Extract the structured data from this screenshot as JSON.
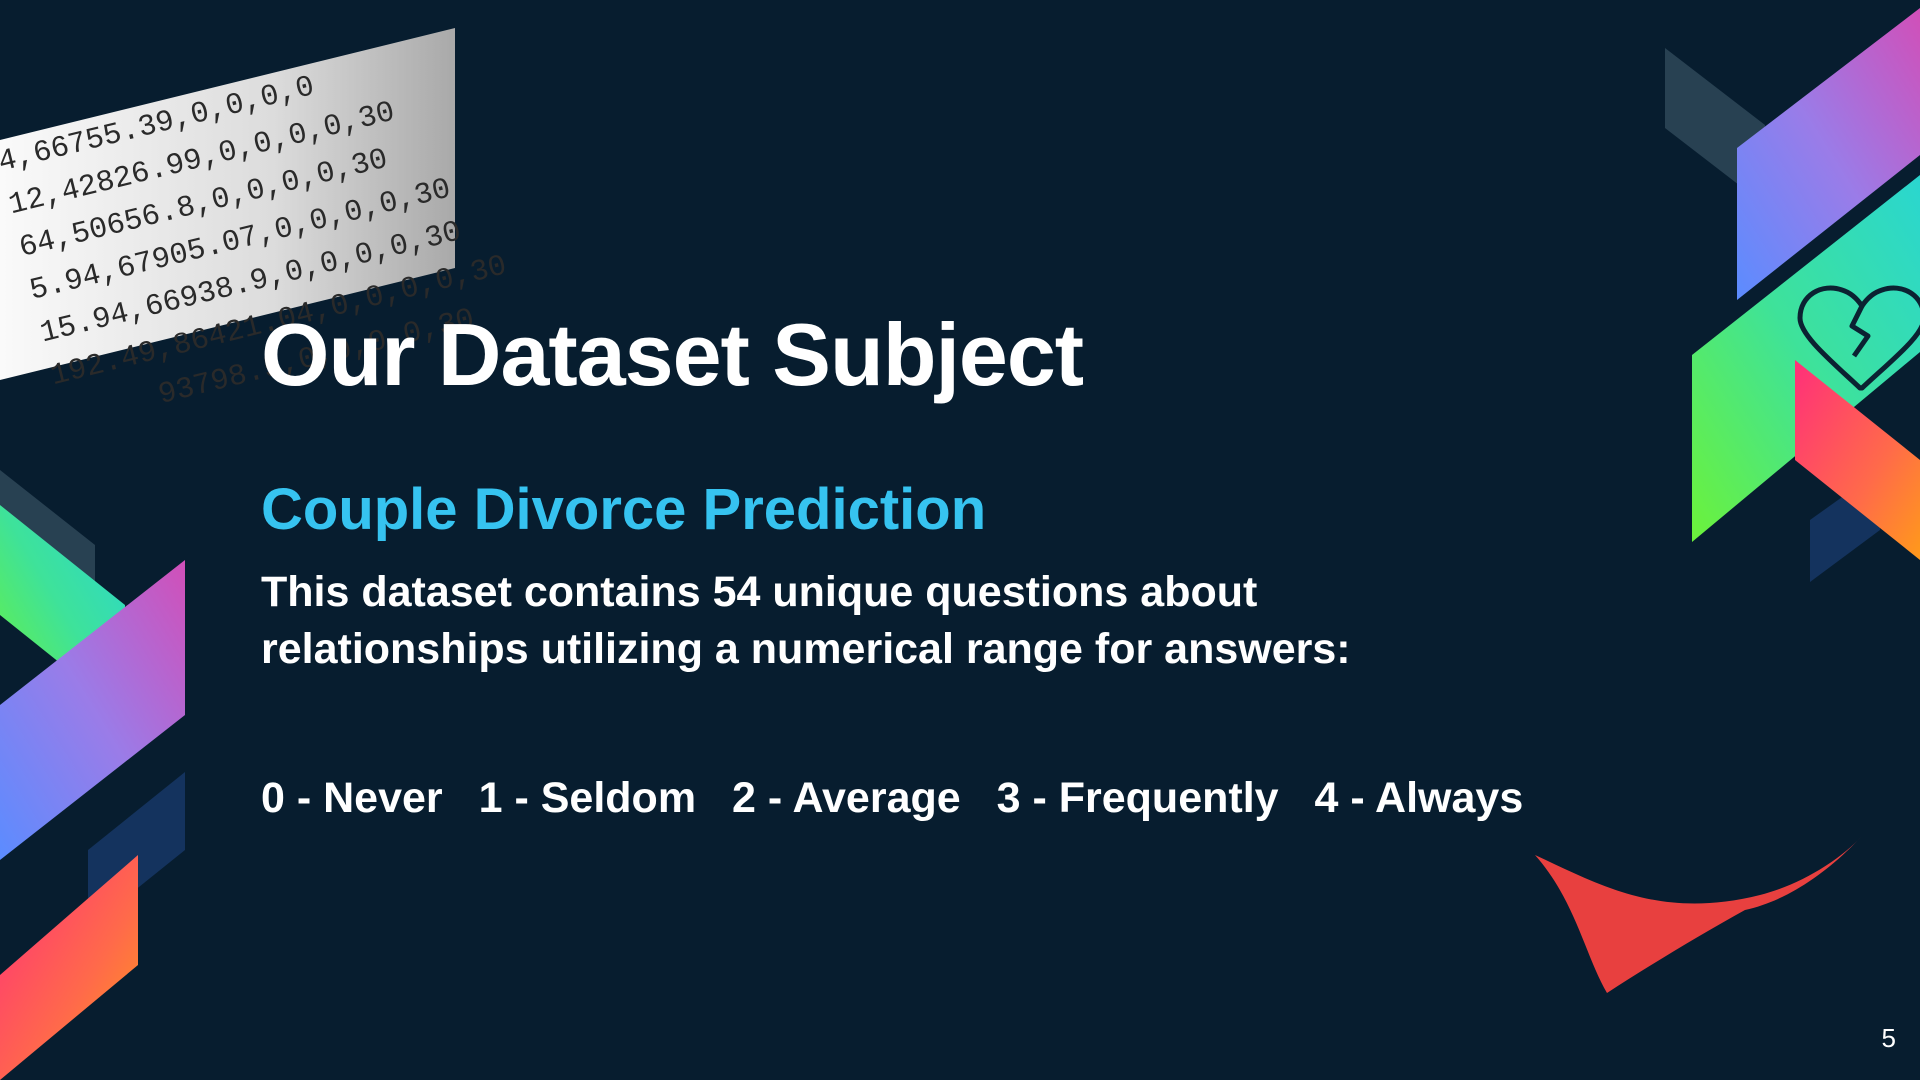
{
  "slide": {
    "title": "Our Dataset Subject",
    "subtitle": "Couple Divorce Prediction",
    "description_lines": [
      "This dataset contains 54 unique questions about",
      "relationships utilizing a numerical range for answers:"
    ],
    "scale": [
      "0 - Never",
      "1 - Seldom",
      "2 - Average",
      "3 - Frequently",
      "4 - Always"
    ],
    "page_number": "5"
  },
  "image_text": [
    "4,66755.39,0,0,0,0",
    "12,42826.99,0,0,0,0,30",
    "64,50656.8,0,0,0,0,30",
    "5.94,67905.07,0,0,0,0,30",
    "15.94,66938.9,0,0,0,0,30",
    "192.49,86421.04,0,0,0,0,30",
    "93798.5,0,0,0,0,30"
  ],
  "icons": [
    "broken-heart-icon",
    "red-ribbon-shape"
  ],
  "colors": {
    "background": "#071d2f",
    "title": "#ffffff",
    "subtitle": "#36c3f0",
    "accent_red": "#e8403f"
  }
}
